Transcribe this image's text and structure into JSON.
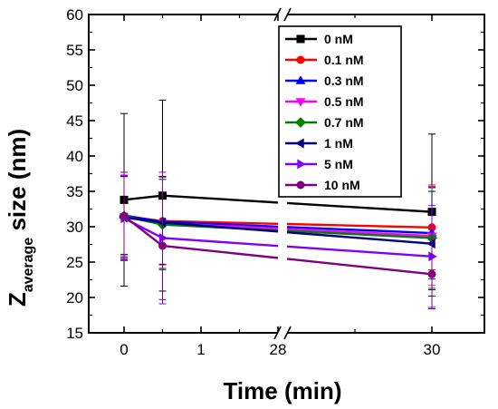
{
  "chart_data": {
    "type": "line",
    "xlabel": "Time (min)",
    "ylabel_main": "Z",
    "ylabel_sub": "average",
    "ylabel_rest": " size (nm)",
    "ylim": [
      15,
      60
    ],
    "yticks": [
      15,
      20,
      25,
      30,
      35,
      40,
      45,
      50,
      55,
      60
    ],
    "x_axis_break": true,
    "x_tick_labels": [
      "0",
      "1",
      "28",
      "30"
    ],
    "x_tick_values": [
      0,
      1,
      28,
      30
    ],
    "x_points": [
      0,
      0.5,
      30
    ],
    "legend_placement": "top-right",
    "series": [
      {
        "name": "0 nM",
        "color": "#000000",
        "marker": "square",
        "values": [
          33.8,
          34.4,
          32.1
        ],
        "err": [
          12.2,
          13.5,
          11.0
        ]
      },
      {
        "name": "0.1 nM",
        "color": "#ff0000",
        "marker": "circle",
        "values": [
          31.5,
          30.8,
          29.9
        ],
        "err": [
          5.8,
          6.2,
          6.0
        ]
      },
      {
        "name": "0.3 nM",
        "color": "#0000ff",
        "marker": "triangle-up",
        "values": [
          31.6,
          30.7,
          29.1
        ],
        "err": [
          5.5,
          6.0,
          6.5
        ]
      },
      {
        "name": "0.5 nM",
        "color": "#ff00ff",
        "marker": "triangle-down",
        "values": [
          31.4,
          30.5,
          28.7
        ],
        "err": [
          5.9,
          6.6,
          7.0
        ]
      },
      {
        "name": "0.7 nM",
        "color": "#008000",
        "marker": "diamond",
        "values": [
          31.5,
          30.3,
          28.4
        ],
        "err": [
          5.6,
          6.4,
          7.1
        ]
      },
      {
        "name": "1 nM",
        "color": "#000080",
        "marker": "triangle-left",
        "values": [
          31.3,
          30.6,
          27.6
        ],
        "err": [
          5.8,
          6.5,
          7.4
        ]
      },
      {
        "name": "5 nM",
        "color": "#8000ff",
        "marker": "triangle-right",
        "values": [
          31.2,
          28.4,
          25.8
        ],
        "err": [
          6.0,
          9.3,
          7.2
        ]
      },
      {
        "name": "10 nM",
        "color": "#800080",
        "marker": "circle",
        "values": [
          31.5,
          27.3,
          23.3
        ],
        "err": [
          6.2,
          7.6,
          4.9
        ]
      }
    ]
  }
}
